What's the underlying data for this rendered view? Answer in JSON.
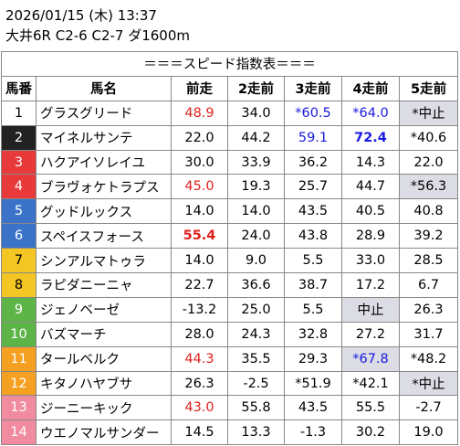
{
  "race": {
    "date_line": "2026/01/15 (木) 13:37",
    "race_line": "大井6R C2-6 C2-7 ダ1600m"
  },
  "table": {
    "banner": "＝＝＝スピード指数表＝＝＝",
    "headers": [
      "馬番",
      "馬名",
      "前走",
      "2走前",
      "3走前",
      "4走前",
      "5走前"
    ],
    "rows": [
      {
        "no": "1",
        "gate_color": "#ffffff",
        "name": "グラスグリード",
        "v": [
          "48.9",
          "34.0",
          "*60.5",
          "*64.0",
          "*中止"
        ],
        "style": [
          "red",
          "",
          "blue",
          "blue",
          "gray"
        ]
      },
      {
        "no": "2",
        "gate_color": "#222222",
        "name": "マイネルサンテ",
        "v": [
          "22.0",
          "44.2",
          "59.1",
          "72.4",
          "*40.6"
        ],
        "style": [
          "",
          "",
          "blue",
          "blue bold",
          ""
        ]
      },
      {
        "no": "3",
        "gate_color": "#e8393b",
        "name": "ハクアイソレイユ",
        "v": [
          "30.0",
          "33.9",
          "36.2",
          "14.3",
          "22.0"
        ],
        "style": [
          "",
          "",
          "",
          "",
          ""
        ]
      },
      {
        "no": "4",
        "gate_color": "#e8393b",
        "name": "ブラヴォケトラプス",
        "v": [
          "45.0",
          "19.3",
          "25.7",
          "44.7",
          "*56.3"
        ],
        "style": [
          "red",
          "",
          "",
          "",
          "gray"
        ]
      },
      {
        "no": "5",
        "gate_color": "#3b73c9",
        "name": "グッドルックス",
        "v": [
          "14.0",
          "14.0",
          "43.5",
          "40.5",
          "40.8"
        ],
        "style": [
          "",
          "",
          "",
          "",
          ""
        ]
      },
      {
        "no": "6",
        "gate_color": "#3b73c9",
        "name": "スペイスフォース",
        "v": [
          "55.4",
          "24.0",
          "43.8",
          "28.9",
          "39.2"
        ],
        "style": [
          "red bold",
          "",
          "",
          "",
          ""
        ]
      },
      {
        "no": "7",
        "gate_color": "#f3c623",
        "name": "シンアルマトゥラ",
        "v": [
          "14.0",
          "9.0",
          "5.5",
          "33.0",
          "28.5"
        ],
        "style": [
          "",
          "",
          "",
          "",
          ""
        ]
      },
      {
        "no": "8",
        "gate_color": "#f3c623",
        "name": "ラピダニーニャ",
        "v": [
          "22.7",
          "36.6",
          "38.7",
          "17.2",
          "6.7"
        ],
        "style": [
          "",
          "",
          "",
          "",
          ""
        ]
      },
      {
        "no": "9",
        "gate_color": "#5eb547",
        "name": "ジェノベーゼ",
        "v": [
          "-13.2",
          "25.0",
          "5.5",
          "中止",
          "26.3"
        ],
        "style": [
          "",
          "",
          "",
          "gray",
          ""
        ]
      },
      {
        "no": "10",
        "gate_color": "#5eb547",
        "name": "バズマーチ",
        "v": [
          "28.0",
          "24.3",
          "32.8",
          "27.2",
          "31.7"
        ],
        "style": [
          "",
          "",
          "",
          "",
          ""
        ]
      },
      {
        "no": "11",
        "gate_color": "#f5a020",
        "name": "タールベルク",
        "v": [
          "44.3",
          "35.5",
          "29.3",
          "*67.8",
          "*48.2"
        ],
        "style": [
          "red",
          "",
          "",
          "blue gray",
          ""
        ]
      },
      {
        "no": "12",
        "gate_color": "#f5a020",
        "name": "キタノハヤブサ",
        "v": [
          "26.3",
          "-2.5",
          "*51.9",
          "*42.1",
          "*中止"
        ],
        "style": [
          "",
          "",
          "",
          "",
          "gray"
        ]
      },
      {
        "no": "13",
        "gate_color": "#f08ba0",
        "name": "ジーニーキック",
        "v": [
          "43.0",
          "55.8",
          "43.5",
          "55.5",
          "-2.7"
        ],
        "style": [
          "red",
          "",
          "",
          "",
          ""
        ]
      },
      {
        "no": "14",
        "gate_color": "#f08ba0",
        "name": "ウエノマルサンダー",
        "v": [
          "14.5",
          "13.3",
          "-1.3",
          "30.2",
          "19.0"
        ],
        "style": [
          "",
          "",
          "",
          "",
          ""
        ]
      }
    ]
  }
}
